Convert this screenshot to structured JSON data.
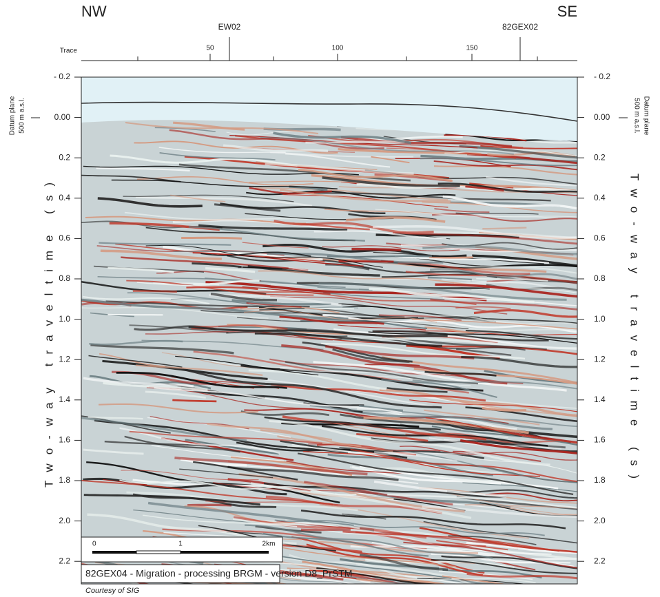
{
  "header": {
    "left_corner": "NW",
    "right_corner": "SE",
    "trace_label": "Trace",
    "well_1": "EW02",
    "well_2": "82GEX02"
  },
  "top_axis": {
    "ticks": [
      "50",
      "100",
      "150"
    ]
  },
  "left_axis": {
    "title": "Two-way traveltime (s)",
    "datum": [
      "Datum plane",
      "500 m a.s.l."
    ],
    "ticks": [
      "- 0.2",
      "0.00",
      "0.2",
      "0.4",
      "0.6",
      "0.8",
      "1.0",
      "1.2",
      "1.4",
      "1.6",
      "1.8",
      "2.0",
      "2.2"
    ]
  },
  "right_axis": {
    "title": "Two-way traveltime (s)",
    "datum": [
      "Datum plane",
      "500 m a.s.l."
    ],
    "ticks": [
      "- 0.2",
      "0.00",
      "0.2",
      "0.4",
      "0.6",
      "0.8",
      "1.0",
      "1.2",
      "1.4",
      "1.6",
      "1.8",
      "2.0",
      "2.2"
    ]
  },
  "scale_bar": {
    "labels": [
      "0",
      "1",
      "2km"
    ]
  },
  "caption": "82GEX04 - Migration - processing BRGM - version D8_PrSTM",
  "credit": "Courtesy of SIG"
}
